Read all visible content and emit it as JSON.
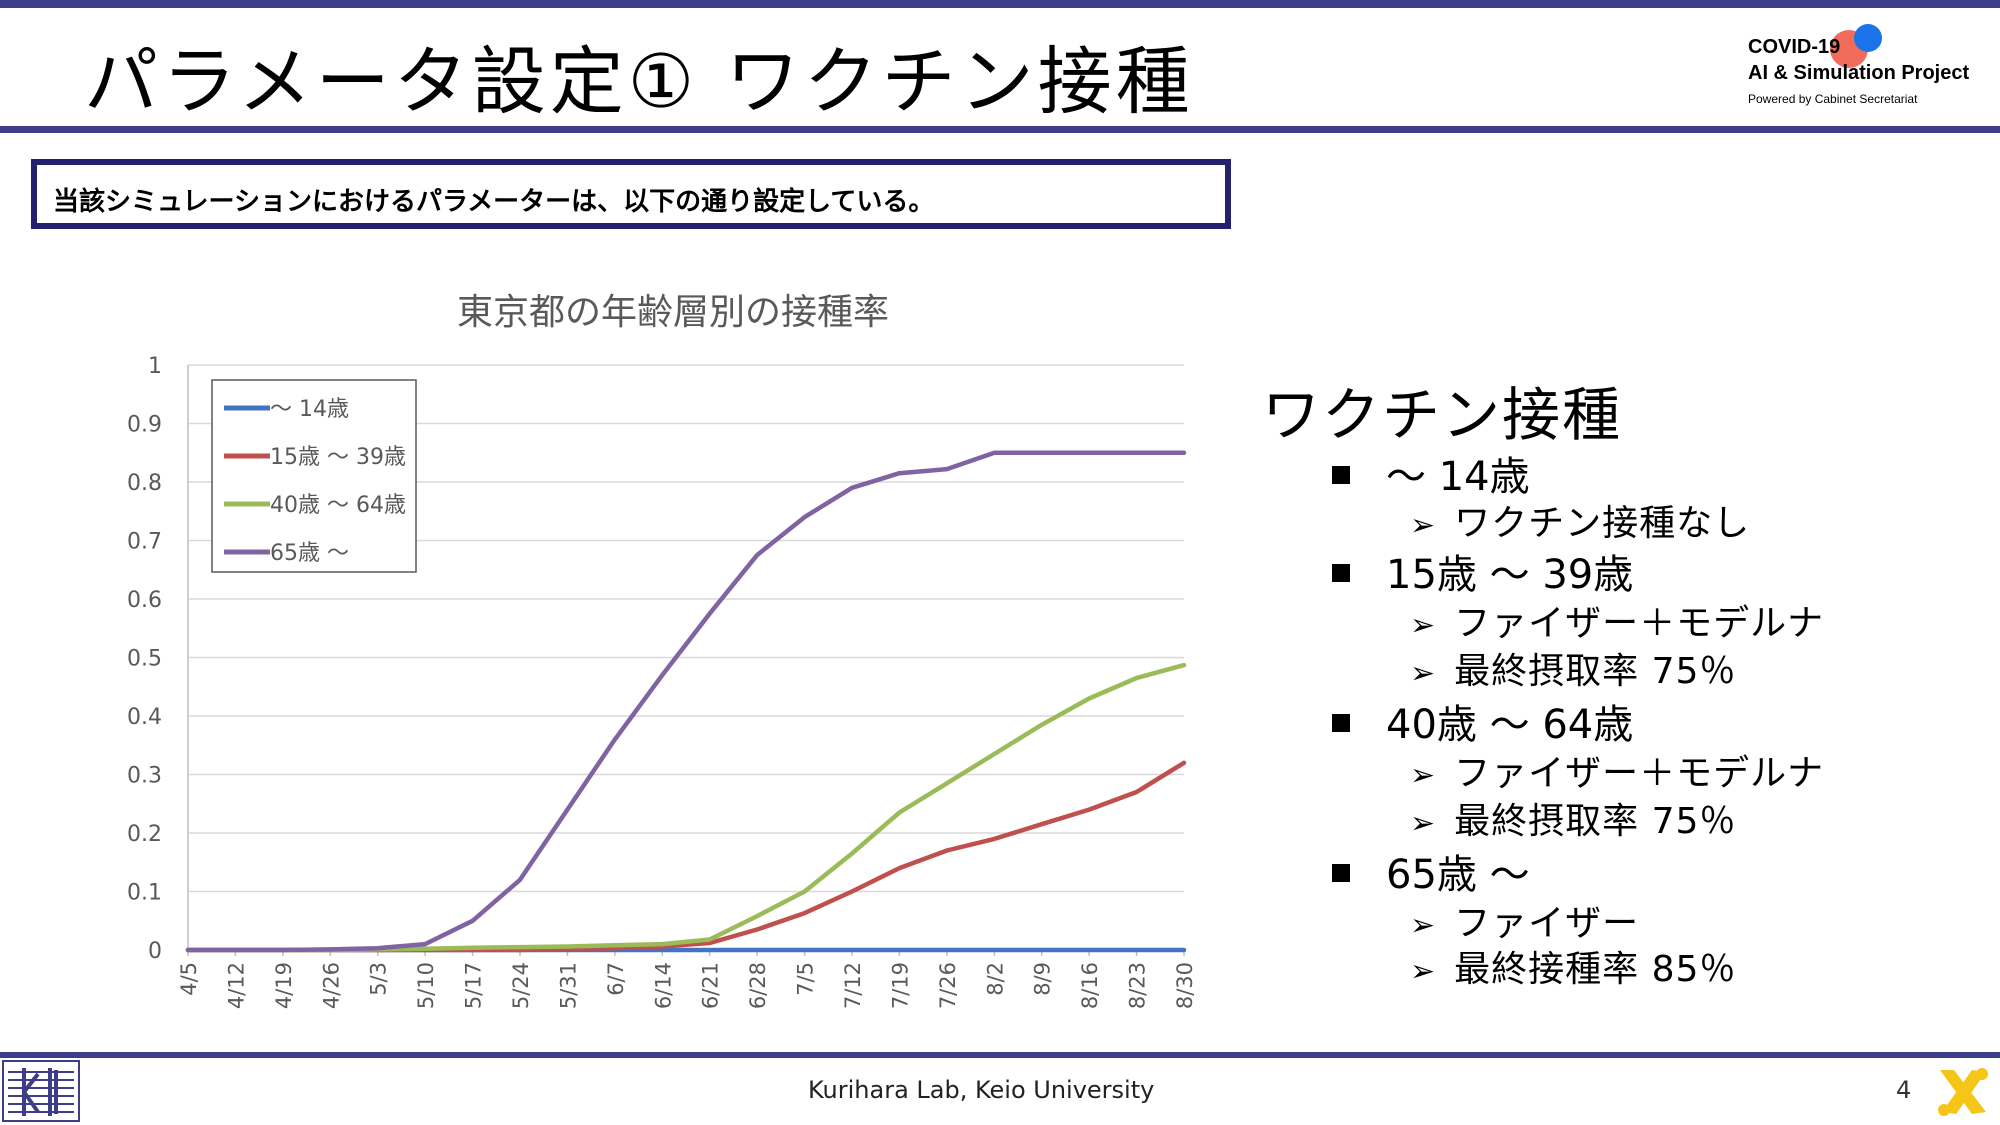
{
  "slide": {
    "title": "パラメータ設定① ワクチン接種",
    "page_number": "4",
    "footer": "Kurihara Lab, Keio University",
    "notice": "当該シミュレーションにおけるパラメーターは、以下の通り設定している。"
  },
  "logo": {
    "line1": "COVID-19",
    "line2": "AI & Simulation Project",
    "line3": "Powered by Cabinet Secretariat"
  },
  "colors": {
    "bar": "#3d3d8a",
    "notice_border": "#22226e",
    "series_0_14": "#4472c4",
    "series_15_39": "#c0504d",
    "series_40_64": "#9bbb59",
    "series_65": "#8064a2"
  },
  "right_panel": {
    "heading": "ワクチン接種",
    "groups": [
      {
        "label": "～ 14歳",
        "items": [
          "ワクチン接種なし"
        ]
      },
      {
        "label": "15歳 ～ 39歳",
        "items": [
          "ファイザー＋モデルナ",
          "最終摂取率 75％"
        ]
      },
      {
        "label": "40歳 ～ 64歳",
        "items": [
          "ファイザー＋モデルナ",
          "最終摂取率 75％"
        ]
      },
      {
        "label": "65歳 ～",
        "items": [
          "ファイザー",
          "最終接種率 85％"
        ]
      }
    ]
  },
  "chart_data": {
    "type": "line",
    "title": "東京都の年齢層別の接種率",
    "xlabel": "",
    "ylabel": "",
    "ylim": [
      0,
      1
    ],
    "yticks": [
      "0",
      "0.1",
      "0.2",
      "0.3",
      "0.4",
      "0.5",
      "0.6",
      "0.7",
      "0.8",
      "0.9",
      "1"
    ],
    "grid": true,
    "legend_position": "top-left",
    "categories": [
      "4/5",
      "4/12",
      "4/19",
      "4/26",
      "5/3",
      "5/10",
      "5/17",
      "5/24",
      "5/31",
      "6/7",
      "6/14",
      "6/21",
      "6/28",
      "7/5",
      "7/12",
      "7/19",
      "7/26",
      "8/2",
      "8/9",
      "8/16",
      "8/23",
      "8/30"
    ],
    "series": [
      {
        "name": "～ 14歳",
        "color": "#4472c4",
        "values": [
          0,
          0,
          0,
          0,
          0,
          0,
          0,
          0,
          0,
          0,
          0,
          0,
          0,
          0,
          0,
          0,
          0,
          0,
          0,
          0,
          0,
          0
        ]
      },
      {
        "name": "15歳 ～ 39歳",
        "color": "#c0504d",
        "values": [
          0,
          0,
          0,
          0,
          0,
          0,
          0,
          0,
          0.002,
          0.003,
          0.006,
          0.012,
          0.035,
          0.063,
          0.1,
          0.14,
          0.17,
          0.19,
          0.215,
          0.24,
          0.27,
          0.32
        ]
      },
      {
        "name": "40歳 ～ 64歳",
        "color": "#9bbb59",
        "values": [
          0,
          0,
          0,
          0,
          0.001,
          0.002,
          0.004,
          0.005,
          0.006,
          0.008,
          0.01,
          0.018,
          0.058,
          0.1,
          0.165,
          0.235,
          0.285,
          0.335,
          0.385,
          0.43,
          0.465,
          0.487
        ]
      },
      {
        "name": "65歳 ～",
        "color": "#8064a2",
        "values": [
          0,
          0,
          0,
          0.001,
          0.003,
          0.01,
          0.05,
          0.12,
          0.24,
          0.36,
          0.47,
          0.575,
          0.675,
          0.74,
          0.79,
          0.815,
          0.822,
          0.85,
          0.85,
          0.85,
          0.85,
          0.85
        ]
      }
    ]
  }
}
